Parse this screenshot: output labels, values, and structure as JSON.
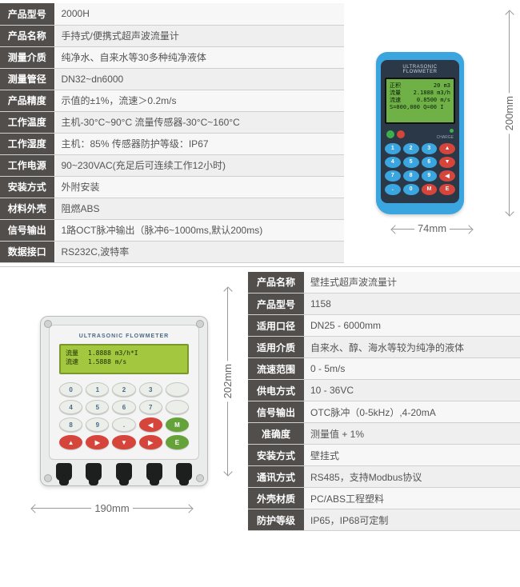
{
  "colors": {
    "label_bg": "#514e4c",
    "device_blue": "#3ba5e0",
    "device_dark": "#2a3848",
    "lcd_green_hh": "#6fb147",
    "lcd_green_wall": "#a3c73f",
    "key_red": "#d6453b",
    "key_green": "#66a23a"
  },
  "top_specs": [
    {
      "label": "产品型号",
      "value": "2000H"
    },
    {
      "label": "产品名称",
      "value": "手持式/便携式超声波流量计"
    },
    {
      "label": "测量介质",
      "value": "纯净水、自来水等30多种纯净液体"
    },
    {
      "label": "测量管径",
      "value": "DN32~dn6000"
    },
    {
      "label": "产品精度",
      "value": "示值的±1%，流速＞0.2m/s"
    },
    {
      "label": "工作温度",
      "value": "主机-30°C~90°C   流量传感器-30°C~160°C"
    },
    {
      "label": "工作湿度",
      "value": "主机：85%  传感器防护等级：IP67"
    },
    {
      "label": "工作电源",
      "value": "90~230VAC(充足后可连续工作12小时)"
    },
    {
      "label": "安装方式",
      "value": "外附安装"
    },
    {
      "label": "材料外壳",
      "value": "阻燃ABS"
    },
    {
      "label": "信号输出",
      "value": "1路OCT脉冲输出（脉冲6~1000ms,默认200ms)"
    },
    {
      "label": "数据接口",
      "value": "RS232C,波特率"
    }
  ],
  "handheld": {
    "title": "ULTRASONIC FLOWMETER",
    "screen": {
      "l1a": "正积",
      "l1b": "20 m3",
      "l2a": "流量",
      "l2b": "2.1888 m3/h",
      "l3a": "流速",
      "l3b": "0.8500 m/s",
      "l4": "S=000,000  Q=00 I"
    },
    "on_label": "ON",
    "off_label": "OFF",
    "charge_label": "CHARGE",
    "keys": [
      {
        "t": "1",
        "c": "num"
      },
      {
        "t": "2",
        "c": "num"
      },
      {
        "t": "3",
        "c": "num"
      },
      {
        "t": "▲",
        "c": "fn"
      },
      {
        "t": "4",
        "c": "num"
      },
      {
        "t": "5",
        "c": "num"
      },
      {
        "t": "6",
        "c": "num"
      },
      {
        "t": "▼",
        "c": "fn"
      },
      {
        "t": "7",
        "c": "num"
      },
      {
        "t": "8",
        "c": "num"
      },
      {
        "t": "9",
        "c": "num"
      },
      {
        "t": "◀",
        "c": "fn"
      },
      {
        "t": ".",
        "c": "num"
      },
      {
        "t": "0",
        "c": "num"
      },
      {
        "t": "M",
        "c": "fn"
      },
      {
        "t": "E",
        "c": "fn"
      }
    ],
    "dim_h": "74mm",
    "dim_v": "200mm"
  },
  "wall": {
    "title": "ULTRASONIC FLOWMETER",
    "screen": {
      "l1a": "流量",
      "l1b": "1.8888 m3/h*I",
      "l2a": "流速",
      "l2b": "1.5888 m/s"
    },
    "keys": [
      {
        "t": "0",
        "c": "num"
      },
      {
        "t": "1",
        "c": "num"
      },
      {
        "t": "2",
        "c": "num"
      },
      {
        "t": "3",
        "c": "num"
      },
      {
        "t": "",
        "c": "led led-r"
      },
      {
        "t": "4",
        "c": "num"
      },
      {
        "t": "5",
        "c": "num"
      },
      {
        "t": "6",
        "c": "num"
      },
      {
        "t": "7",
        "c": "num"
      },
      {
        "t": "",
        "c": "led led-g"
      },
      {
        "t": "8",
        "c": "num"
      },
      {
        "t": "9",
        "c": "num"
      },
      {
        "t": ".",
        "c": "num"
      },
      {
        "t": "◀",
        "c": "red"
      },
      {
        "t": "M",
        "c": "grn"
      },
      {
        "t": "▲",
        "c": "red"
      },
      {
        "t": "▶",
        "c": "red"
      },
      {
        "t": "▼",
        "c": "red"
      },
      {
        "t": "▶",
        "c": "red"
      },
      {
        "t": "E",
        "c": "grn"
      }
    ],
    "dim_h": "190mm",
    "dim_v": "202mm"
  },
  "bottom_specs": [
    {
      "label": "产品名称",
      "value": "壁挂式超声波流量计"
    },
    {
      "label": "产品型号",
      "value": "1158"
    },
    {
      "label": "适用口径",
      "value": "DN25 - 6000mm"
    },
    {
      "label": "适用介质",
      "value": "自来水、醇、海水等较为纯净的液体"
    },
    {
      "label": "流速范围",
      "value": "0 - 5m/s"
    },
    {
      "label": "供电方式",
      "value": "10 - 36VC"
    },
    {
      "label": "信号输出",
      "value": "OTC脉冲（0-5kHz）,4-20mA"
    },
    {
      "label": "准确度",
      "value": "测量值 + 1%"
    },
    {
      "label": "安装方式",
      "value": "壁挂式"
    },
    {
      "label": "通讯方式",
      "value": "RS485，支持Modbus协议"
    },
    {
      "label": "外壳材质",
      "value": "PC/ABS工程塑料"
    },
    {
      "label": "防护等级",
      "value": "IP65，IP68可定制"
    }
  ]
}
